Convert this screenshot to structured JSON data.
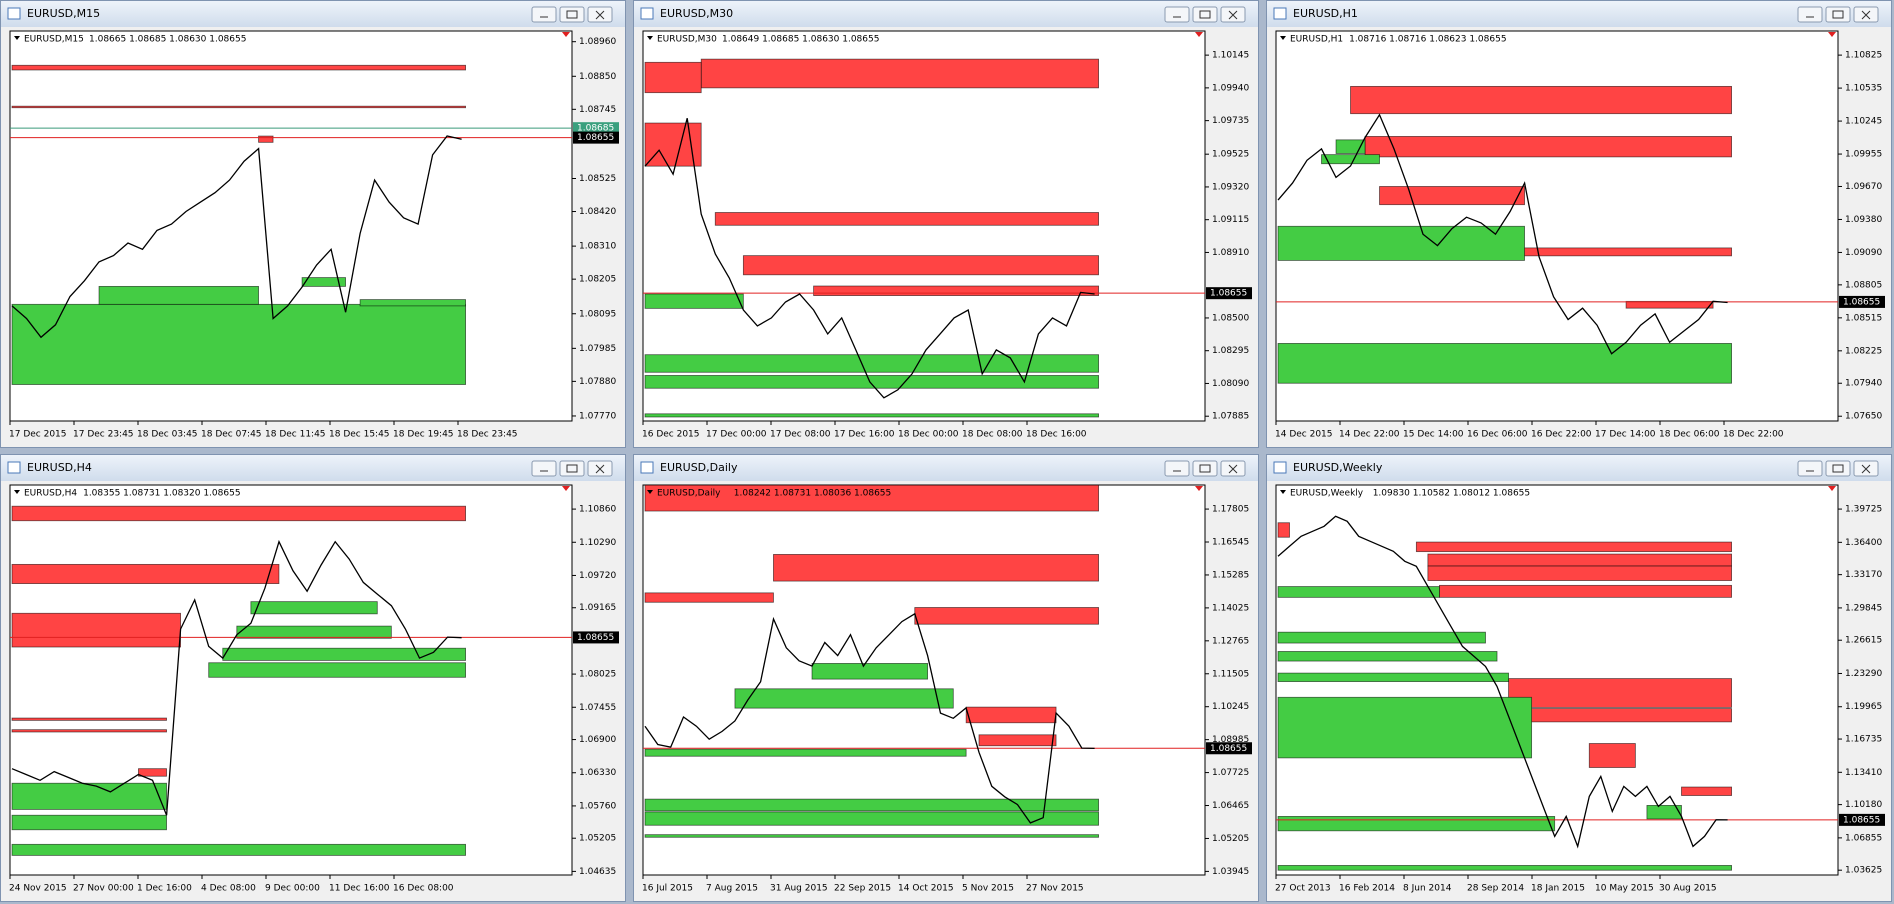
{
  "windows": [
    {
      "title": "EURUSD,M15",
      "header": "1.08665 1.08685 1.08630 1.08655",
      "ylim": [
        1.07754,
        1.08994
      ],
      "yticks": [
        {
          "value": 1.0896,
          "label": "1.08960"
        },
        {
          "value": 1.0885,
          "label": "1.08850"
        },
        1.08745,
        1.08525,
        {
          "value": 1.0842,
          "label": "1.08420"
        },
        {
          "value": 1.0831,
          "label": "1.08310"
        },
        1.08205,
        1.08095,
        1.07985,
        {
          "value": 1.0788,
          "label": "1.07880"
        },
        {
          "value": 1.0777,
          "label": "1.07770"
        }
      ],
      "xlabels": [
        "17 Dec 2015",
        "17 Dec 23:45",
        "18 Dec 03:45",
        "18 Dec 07:45",
        "18 Dec 11:45",
        "18 Dec 15:45",
        "18 Dec 19:45",
        "18 Dec 23:45"
      ],
      "price": 1.08655,
      "ask": 1.08685,
      "closes": [
        1.0812,
        1.0808,
        1.0802,
        1.0806,
        1.0815,
        1.082,
        1.0826,
        1.0828,
        1.0832,
        1.083,
        1.0836,
        1.0838,
        1.0842,
        1.0845,
        1.0848,
        1.0852,
        1.0858,
        1.0862,
        1.0808,
        1.0812,
        1.0818,
        1.0825,
        1.083,
        1.081,
        1.0835,
        1.0852,
        1.0845,
        1.084,
        1.0838,
        1.086,
        1.0866,
        1.0865
      ],
      "zones": [
        {
          "low": 1.0887,
          "high": 1.08885,
          "start": 0,
          "color": "#ff4444"
        },
        {
          "low": 1.0875,
          "high": 1.08755,
          "start": 0,
          "color": "#ff4444"
        },
        {
          "low": 1.0864,
          "high": 1.0866,
          "start": 17,
          "end": 18,
          "color": "#ff4444"
        },
        {
          "low": 1.0787,
          "high": 1.08125,
          "start": 0,
          "color": "#44cc44"
        },
        {
          "low": 1.08125,
          "high": 1.08182,
          "start": 6,
          "end": 17,
          "color": "#44cc44"
        },
        {
          "low": 1.08182,
          "high": 1.0821,
          "start": 20,
          "end": 23,
          "color": "#44cc44"
        },
        {
          "low": 1.0812,
          "high": 1.0814,
          "start": 24,
          "color": "#44cc44"
        }
      ]
    },
    {
      "title": "EURUSD,M30",
      "header": "1.08649 1.08685 1.08630 1.08655",
      "ylim": [
        1.07855,
        1.10296
      ],
      "yticks": [
        1.10145,
        {
          "value": 1.0994,
          "label": "1.09940"
        },
        1.09735,
        1.09525,
        {
          "value": 1.0932,
          "label": "1.09320"
        },
        1.09115,
        {
          "value": 1.0891,
          "label": "1.08910"
        },
        {
          "value": 1.085,
          "label": "1.08500"
        },
        1.08295,
        {
          "value": 1.0809,
          "label": "1.08090"
        },
        1.07885
      ],
      "xlabels": [
        "16 Dec 2015",
        "17 Dec 00:00",
        "17 Dec 08:00",
        "17 Dec 16:00",
        "18 Dec 00:00",
        "18 Dec 08:00",
        "18 Dec 16:00"
      ],
      "price": 1.08655,
      "closes": [
        1.0945,
        1.0955,
        1.094,
        1.0975,
        1.0915,
        1.089,
        1.0875,
        1.0855,
        1.0845,
        1.085,
        1.086,
        1.0865,
        1.0855,
        1.084,
        1.085,
        1.083,
        1.081,
        1.08,
        1.0805,
        1.0815,
        1.083,
        1.084,
        1.085,
        1.0855,
        1.0815,
        1.083,
        1.0825,
        1.081,
        1.084,
        1.085,
        1.0845,
        1.0866,
        1.0865
      ],
      "zones": [
        {
          "low": 1.0994,
          "high": 1.1012,
          "start": 4,
          "color": "#ff4444"
        },
        {
          "low": 1.0991,
          "high": 1.101,
          "start": 0,
          "end": 4,
          "color": "#ff4444"
        },
        {
          "low": 1.0945,
          "high": 1.0972,
          "start": 0,
          "end": 4,
          "color": "#ff4444"
        },
        {
          "low": 1.0908,
          "high": 1.0916,
          "start": 5,
          "color": "#ff4444"
        },
        {
          "low": 1.0877,
          "high": 1.0889,
          "start": 7,
          "color": "#ff4444"
        },
        {
          "low": 1.0864,
          "high": 1.087,
          "start": 12,
          "color": "#ff4444"
        },
        {
          "low": 1.0856,
          "high": 1.0865,
          "start": 0,
          "end": 7,
          "color": "#44cc44"
        },
        {
          "low": 1.0816,
          "high": 1.0827,
          "start": 0,
          "color": "#44cc44"
        },
        {
          "low": 1.0806,
          "high": 1.0814,
          "start": 0,
          "color": "#44cc44"
        },
        {
          "low": 1.0788,
          "high": 1.079,
          "start": 0,
          "color": "#44cc44"
        }
      ]
    },
    {
      "title": "EURUSD,H1",
      "header": "1.08716 1.08716 1.08623 1.08655",
      "ylim": [
        1.07608,
        1.11037
      ],
      "yticks": [
        1.10825,
        1.10535,
        1.10245,
        1.09955,
        {
          "value": 1.0967,
          "label": "1.09670"
        },
        {
          "value": 1.0938,
          "label": "1.09380"
        },
        {
          "value": 1.0909,
          "label": "1.09090"
        },
        1.08805,
        1.08515,
        1.08225,
        {
          "value": 1.0794,
          "label": "1.07940"
        },
        {
          "value": 1.0765,
          "label": "1.07650"
        }
      ],
      "xlabels": [
        "14 Dec 2015",
        "14 Dec 22:00",
        "15 Dec 14:00",
        "16 Dec 06:00",
        "16 Dec 22:00",
        "17 Dec 14:00",
        "18 Dec 06:00",
        "18 Dec 22:00"
      ],
      "price": 1.08655,
      "closes": [
        1.0955,
        1.097,
        1.099,
        1.1,
        1.0975,
        1.0985,
        1.101,
        1.103,
        1.1,
        1.0965,
        1.0925,
        1.0915,
        1.093,
        1.094,
        1.0935,
        1.0925,
        1.0945,
        1.097,
        1.0905,
        1.087,
        1.085,
        1.086,
        1.0845,
        1.082,
        1.083,
        1.0845,
        1.0855,
        1.083,
        1.084,
        1.085,
        1.0866,
        1.0865
      ],
      "zones": [
        {
          "low": 1.1031,
          "high": 1.1055,
          "start": 5,
          "color": "#ff4444"
        },
        {
          "low": 1.0993,
          "high": 1.1011,
          "start": 6,
          "color": "#ff4444"
        },
        {
          "low": 1.0951,
          "high": 1.0967,
          "start": 7,
          "end": 17,
          "color": "#ff4444"
        },
        {
          "low": 1.0906,
          "high": 1.0913,
          "start": 12,
          "color": "#ff4444"
        },
        {
          "low": 1.086,
          "high": 1.0866,
          "start": 24,
          "end": 30,
          "color": "#ff4444"
        },
        {
          "low": 1.0902,
          "high": 1.0932,
          "start": 0,
          "end": 17,
          "color": "#44cc44"
        },
        {
          "low": 1.0794,
          "high": 1.0829,
          "start": 0,
          "color": "#44cc44"
        },
        {
          "low": 1.0996,
          "high": 1.1008,
          "start": 4,
          "end": 6,
          "color": "#44cc44"
        },
        {
          "low": 1.0987,
          "high": 1.0995,
          "start": 3,
          "end": 7,
          "color": "#44cc44"
        }
      ]
    },
    {
      "title": "EURUSD,H4",
      "header": "1.08355 1.08731 1.08320 1.08655",
      "ylim": [
        1.04573,
        1.11274
      ],
      "yticks": [
        {
          "value": 1.1086,
          "label": "1.10860"
        },
        {
          "value": 1.1029,
          "label": "1.10290"
        },
        {
          "value": 1.0972,
          "label": "1.09720"
        },
        1.09165,
        1.08025,
        1.07455,
        {
          "value": 1.069,
          "label": "1.06900"
        },
        {
          "value": 1.0633,
          "label": "1.06330"
        },
        {
          "value": 1.0576,
          "label": "1.05760"
        },
        1.05205,
        1.04635
      ],
      "xlabels": [
        "24 Nov 2015",
        "27 Nov 00:00",
        "1 Dec 16:00",
        "4 Dec 08:00",
        "9 Dec 00:00",
        "11 Dec 16:00",
        "16 Dec 08:00"
      ],
      "price": 1.08655,
      "closes": [
        1.064,
        1.063,
        1.062,
        1.0635,
        1.0625,
        1.0615,
        1.061,
        1.06,
        1.0615,
        1.063,
        1.062,
        1.056,
        1.088,
        1.093,
        1.085,
        1.083,
        1.087,
        1.089,
        1.095,
        1.103,
        1.098,
        1.0945,
        1.099,
        1.103,
        1.1,
        1.096,
        1.094,
        1.092,
        1.088,
        1.083,
        1.084,
        1.0866,
        1.0865
      ],
      "zones": [
        {
          "low": 1.1066,
          "high": 1.1091,
          "start": 0,
          "color": "#ff4444"
        },
        {
          "low": 1.0958,
          "high": 1.0991,
          "start": 0,
          "end": 19,
          "color": "#ff4444"
        },
        {
          "low": 1.0849,
          "high": 1.0907,
          "start": 0,
          "end": 12,
          "color": "#ff4444"
        },
        {
          "low": 1.0723,
          "high": 1.0727,
          "start": 0,
          "end": 11,
          "color": "#ff4444"
        },
        {
          "low": 1.0703,
          "high": 1.0707,
          "start": 0,
          "end": 11,
          "color": "#ff4444"
        },
        {
          "low": 1.0627,
          "high": 1.064,
          "start": 9,
          "end": 11,
          "color": "#ff4444"
        },
        {
          "low": 1.057,
          "high": 1.0615,
          "start": 0,
          "end": 11,
          "color": "#44cc44"
        },
        {
          "low": 1.0535,
          "high": 1.056,
          "start": 0,
          "end": 11,
          "color": "#44cc44"
        },
        {
          "low": 1.0491,
          "high": 1.051,
          "start": 0,
          "color": "#44cc44"
        },
        {
          "low": 1.0797,
          "high": 1.0822,
          "start": 14,
          "color": "#44cc44"
        },
        {
          "low": 1.0826,
          "high": 1.0847,
          "start": 15,
          "color": "#44cc44"
        },
        {
          "low": 1.0864,
          "high": 1.0885,
          "start": 16,
          "end": 27,
          "color": "#44cc44"
        },
        {
          "low": 1.0906,
          "high": 1.0927,
          "start": 17,
          "end": 26,
          "color": "#44cc44"
        }
      ]
    },
    {
      "title": "EURUSD,Daily",
      "header": "1.08242 1.08731 1.08036 1.08655",
      "ylim": [
        1.03807,
        1.18726
      ],
      "yticks": [
        1.17805,
        1.16545,
        1.15285,
        1.14025,
        1.12765,
        1.11505,
        1.10245,
        1.08985,
        1.07725,
        1.06465,
        1.05205,
        1.03945
      ],
      "xlabels": [
        "16 Jul 2015",
        "7 Aug 2015",
        "31 Aug 2015",
        "22 Sep 2015",
        "14 Oct 2015",
        "5 Nov 2015",
        "27 Nov 2015"
      ],
      "price": 1.08655,
      "closes": [
        1.095,
        1.088,
        1.087,
        1.0985,
        1.095,
        1.09,
        1.093,
        1.097,
        1.105,
        1.112,
        1.136,
        1.125,
        1.12,
        1.118,
        1.127,
        1.122,
        1.13,
        1.118,
        1.125,
        1.13,
        1.135,
        1.138,
        1.122,
        1.1,
        1.098,
        1.102,
        1.085,
        1.072,
        1.068,
        1.065,
        1.058,
        1.06,
        1.1,
        1.095,
        1.0866,
        1.0865
      ],
      "zones": [
        {
          "low": 1.1773,
          "high": 1.1872,
          "start": 0,
          "color": "#ff4444"
        },
        {
          "low": 1.1505,
          "high": 1.1607,
          "start": 10,
          "color": "#ff4444"
        },
        {
          "low": 1.1424,
          "high": 1.146,
          "start": 0,
          "end": 10,
          "color": "#ff4444"
        },
        {
          "low": 1.134,
          "high": 1.1404,
          "start": 21,
          "color": "#ff4444"
        },
        {
          "low": 1.0963,
          "high": 1.1023,
          "start": 25,
          "end": 32,
          "color": "#ff4444"
        },
        {
          "low": 1.0875,
          "high": 1.0917,
          "start": 26,
          "end": 32,
          "color": "#ff4444"
        },
        {
          "low": 1.1019,
          "high": 1.1093,
          "start": 7,
          "end": 24,
          "color": "#44cc44"
        },
        {
          "low": 1.113,
          "high": 1.119,
          "start": 13,
          "end": 22,
          "color": "#44cc44"
        },
        {
          "low": 1.0835,
          "high": 1.0862,
          "start": 0,
          "end": 25,
          "color": "#44cc44"
        },
        {
          "low": 1.0626,
          "high": 1.0671,
          "start": 0,
          "color": "#44cc44"
        },
        {
          "low": 1.0571,
          "high": 1.0622,
          "start": 0,
          "color": "#44cc44"
        },
        {
          "low": 1.0525,
          "high": 1.0535,
          "start": 0,
          "color": "#44cc44"
        }
      ]
    },
    {
      "title": "EURUSD,Weekly",
      "header": "1.09830 1.10582 1.08012 1.08655",
      "ylim": [
        1.03144,
        1.42132
      ],
      "yticks": [
        1.39725,
        {
          "value": 1.364,
          "label": "1.36400"
        },
        {
          "value": 1.3317,
          "label": "1.33170"
        },
        1.29845,
        1.26615,
        {
          "value": 1.2329,
          "label": "1.23290"
        },
        1.19965,
        1.16735,
        {
          "value": 1.1341,
          "label": "1.13410"
        },
        {
          "value": 1.1018,
          "label": "1.10180"
        },
        1.06855,
        1.03625
      ],
      "xlabels": [
        "27 Oct 2013",
        "16 Feb 2014",
        "8 Jun 2014",
        "28 Sep 2014",
        "18 Jan 2015",
        "10 May 2015",
        "30 Aug 2015"
      ],
      "price": 1.08655,
      "closes": [
        1.35,
        1.36,
        1.37,
        1.375,
        1.38,
        1.39,
        1.385,
        1.37,
        1.365,
        1.36,
        1.355,
        1.345,
        1.34,
        1.32,
        1.3,
        1.28,
        1.26,
        1.25,
        1.24,
        1.22,
        1.19,
        1.16,
        1.13,
        1.1,
        1.07,
        1.09,
        1.06,
        1.11,
        1.13,
        1.095,
        1.12,
        1.11,
        1.12,
        1.1,
        1.11,
        1.09,
        1.06,
        1.07,
        1.0866,
        1.0865
      ],
      "zones": [
        {
          "low": 1.3547,
          "high": 1.3643,
          "start": 12,
          "color": "#ff4444"
        },
        {
          "low": 1.3403,
          "high": 1.3523,
          "start": 13,
          "color": "#ff4444"
        },
        {
          "low": 1.3258,
          "high": 1.3403,
          "start": 13,
          "color": "#ff4444"
        },
        {
          "low": 1.309,
          "high": 1.321,
          "start": 14,
          "color": "#ff4444"
        },
        {
          "low": 1.199,
          "high": 1.2278,
          "start": 20,
          "color": "#ff4444"
        },
        {
          "low": 1.1845,
          "high": 1.1978,
          "start": 21,
          "color": "#ff4444"
        },
        {
          "low": 1.1389,
          "high": 1.1629,
          "start": 27,
          "end": 31,
          "color": "#ff4444"
        },
        {
          "low": 1.1109,
          "high": 1.1194,
          "start": 35,
          "color": "#ff4444"
        },
        {
          "low": 1.3691,
          "high": 1.3836,
          "start": 0,
          "end": 1,
          "color": "#ff4444"
        },
        {
          "low": 1.309,
          "high": 1.3198,
          "start": 0,
          "end": 14,
          "color": "#44cc44"
        },
        {
          "low": 1.2633,
          "high": 1.2742,
          "start": 0,
          "end": 18,
          "color": "#44cc44"
        },
        {
          "low": 1.2453,
          "high": 1.2549,
          "start": 0,
          "end": 19,
          "color": "#44cc44"
        },
        {
          "low": 1.2248,
          "high": 1.2333,
          "start": 0,
          "end": 20,
          "color": "#44cc44"
        },
        {
          "low": 1.1485,
          "high": 1.2091,
          "start": 0,
          "end": 22,
          "color": "#44cc44"
        },
        {
          "low": 1.0756,
          "high": 1.09,
          "start": 0,
          "end": 24,
          "color": "#44cc44"
        },
        {
          "low": 1.0875,
          "high": 1.101,
          "start": 32,
          "end": 35,
          "color": "#44cc44"
        },
        {
          "low": 1.0362,
          "high": 1.041,
          "start": 0,
          "color": "#44cc44"
        }
      ]
    }
  ]
}
